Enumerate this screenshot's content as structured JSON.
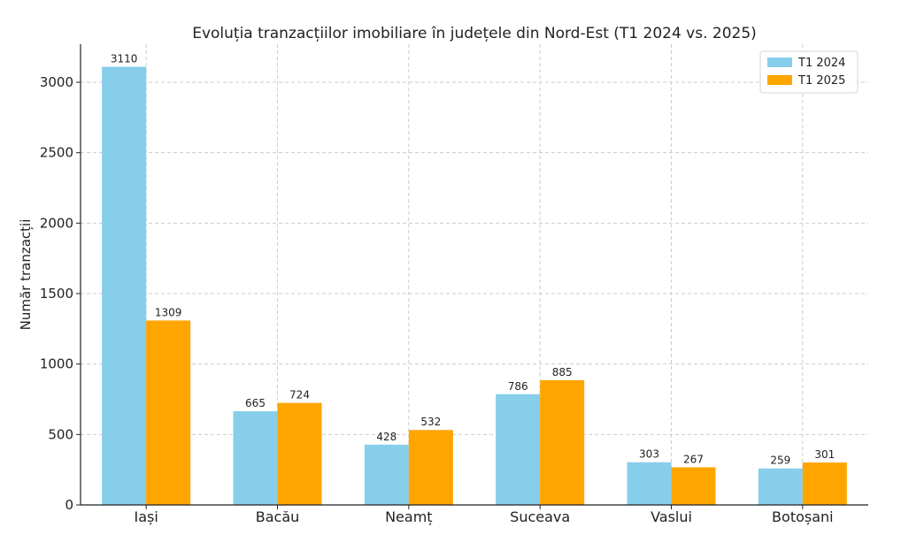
{
  "chart_data": {
    "type": "bar",
    "title": "Evoluția tranzacțiilor imobiliare în județele din Nord-Est (T1 2024 vs. 2025)",
    "xlabel": "",
    "ylabel": "Număr tranzacții",
    "categories": [
      "Iași",
      "Bacău",
      "Neamț",
      "Suceava",
      "Vaslui",
      "Botoșani"
    ],
    "series": [
      {
        "name": "T1 2024",
        "color": "#87CEEB",
        "values": [
          3110,
          665,
          428,
          786,
          303,
          259
        ]
      },
      {
        "name": "T1 2025",
        "color": "#FFA500",
        "values": [
          1309,
          724,
          532,
          885,
          267,
          301
        ]
      }
    ],
    "ylim": [
      0,
      3270
    ],
    "yticks": [
      0,
      500,
      1000,
      1500,
      2000,
      2500,
      3000
    ],
    "grid": true,
    "legend_position": "top-right"
  }
}
